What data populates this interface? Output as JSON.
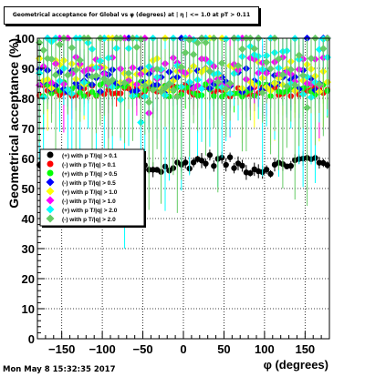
{
  "canvas_title": "Geometrical acceptance for Global vs φ (degrees) at | η | <= 1.0 at pT > 0.11",
  "timestamp": "Mon May  8 15:32:35 2017",
  "chart_data": {
    "type": "scatter",
    "title": "Geometrical acceptance for Global vs φ (degrees) at | η | <= 1.0 at pT > 0.11",
    "xlabel": "φ (degrees)",
    "ylabel": "Geometrical acceptance (%)",
    "xlim": [
      -180,
      180
    ],
    "ylim": [
      0,
      100
    ],
    "x_ticks": [
      -150,
      -100,
      -50,
      0,
      50,
      100,
      150
    ],
    "y_ticks": [
      0,
      10,
      20,
      30,
      40,
      50,
      60,
      70,
      80,
      90,
      100
    ],
    "grid": true,
    "legend_position": "middle-left",
    "series": [
      {
        "name": "(+) with p T/|q| > 0.1",
        "color": "#000000",
        "marker": "circle",
        "y_level": 58.0,
        "spread": 2.0,
        "err": 2.0
      },
      {
        "name": "(-) with p T/|q| > 0.1",
        "color": "#ff0000",
        "marker": "circle",
        "y_level": 82.5,
        "spread": 2.0,
        "err": 4.0
      },
      {
        "name": "(+) with p T/|q| > 0.5",
        "color": "#00ff00",
        "marker": "circle",
        "y_level": 83.0,
        "spread": 2.5,
        "err": 8.0
      },
      {
        "name": "(-) with p T/|q| > 0.5",
        "color": "#0000ff",
        "marker": "diamond",
        "y_level": 86.0,
        "spread": 4.0,
        "err": 8.0
      },
      {
        "name": "(+) with p T/|q| > 1.0",
        "color": "#ffff00",
        "marker": "diamond",
        "y_level": 88.0,
        "spread": 6.0,
        "err": 15.0
      },
      {
        "name": "(-) with p T/|q| > 1.0",
        "color": "#ff00ff",
        "marker": "diamond",
        "y_level": 89.0,
        "spread": 5.0,
        "err": 14.0
      },
      {
        "name": "(+) with p T/|q| > 2.0",
        "color": "#00ffff",
        "marker": "diamond",
        "y_level": 90.0,
        "spread": 10.0,
        "err": 30.0
      },
      {
        "name": "(-) with p T/|q| > 2.0",
        "color": "#66cc66",
        "marker": "diamond",
        "y_level": 92.0,
        "spread": 10.0,
        "err": 30.0
      }
    ]
  }
}
